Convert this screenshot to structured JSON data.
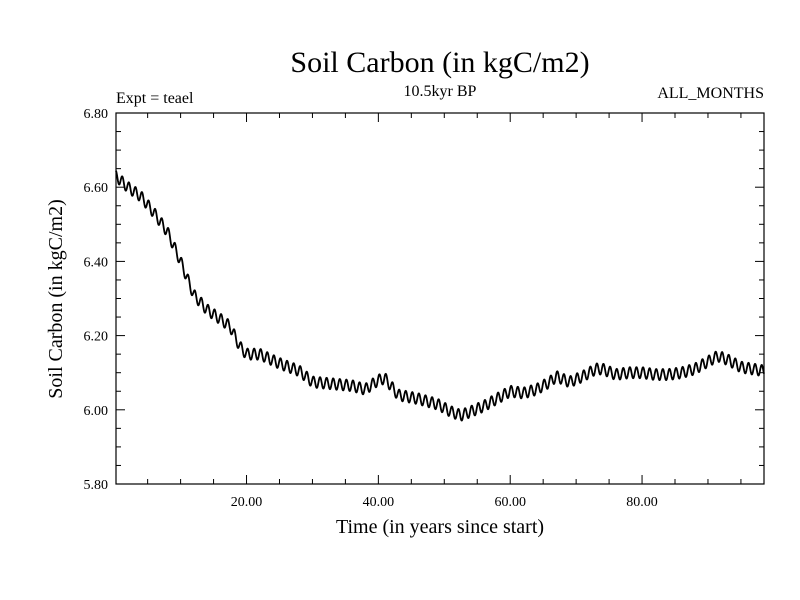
{
  "chart_data": {
    "type": "line",
    "title": "Soil Carbon (in kgC/m2)",
    "subtitle": "10.5kyr BP",
    "experiment_label": "Expt = teael",
    "period_label": "ALL_MONTHS",
    "xlabel": "Time (in years since start)",
    "ylabel": "Soil Carbon (in kgC/m2)",
    "xlim": [
      0.2,
      98.5
    ],
    "ylim": [
      5.8,
      6.8
    ],
    "x_ticks": [
      20,
      40,
      60,
      80
    ],
    "x_tick_labels": [
      "20.00",
      "40.00",
      "60.00",
      "80.00"
    ],
    "y_ticks": [
      5.8,
      6.0,
      6.2,
      6.4,
      6.6,
      6.8
    ],
    "y_tick_labels": [
      "5.80",
      "6.00",
      "6.20",
      "6.40",
      "6.60",
      "6.80"
    ],
    "grid": false,
    "seasonal_amplitude": 0.015,
    "series": [
      {
        "name": "Soil Carbon",
        "color": "#000000",
        "x": [
          0.2,
          2,
          4,
          6,
          8,
          10,
          12,
          14,
          16,
          17.5,
          19,
          20,
          22,
          25,
          28,
          30,
          33,
          36,
          38,
          40,
          41,
          43,
          46,
          49,
          51,
          52.5,
          54,
          56,
          58,
          60,
          62,
          64,
          66,
          67,
          69,
          71,
          73,
          74,
          76,
          78,
          80,
          82,
          84,
          86,
          88,
          90,
          91.5,
          93,
          95,
          98.5
        ],
        "y": [
          6.63,
          6.6,
          6.575,
          6.53,
          6.48,
          6.4,
          6.31,
          6.27,
          6.245,
          6.225,
          6.17,
          6.15,
          6.15,
          6.125,
          6.105,
          6.075,
          6.07,
          6.065,
          6.055,
          6.08,
          6.085,
          6.04,
          6.03,
          6.015,
          5.995,
          5.985,
          5.995,
          6.01,
          6.03,
          6.05,
          6.045,
          6.055,
          6.075,
          6.09,
          6.075,
          6.09,
          6.11,
          6.11,
          6.095,
          6.1,
          6.1,
          6.095,
          6.095,
          6.1,
          6.11,
          6.13,
          6.145,
          6.135,
          6.115,
          6.105
        ]
      }
    ]
  }
}
